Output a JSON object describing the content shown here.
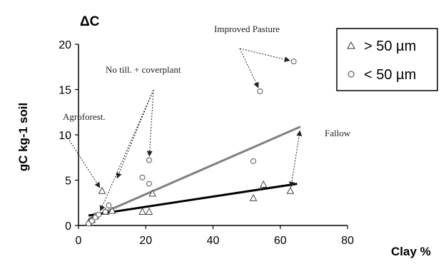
{
  "chart_data": {
    "type": "scatter",
    "title": "ΔC",
    "xlabel": "Clay %",
    "ylabel": "gC kg-1 soil",
    "xlim": [
      0,
      80
    ],
    "ylim": [
      0,
      20
    ],
    "x_ticks": [
      0,
      20,
      40,
      60,
      80
    ],
    "y_ticks": [
      0,
      5,
      10,
      15,
      20
    ],
    "x_tick_labels": [
      "0",
      "20",
      "40",
      "60",
      "80"
    ],
    "y_tick_labels": [
      "0",
      "5",
      "10",
      "15",
      "20"
    ],
    "grid": false,
    "legend_position": "top-right",
    "series": [
      {
        "name": "> 50 µm",
        "marker": "triangle",
        "x": [
          3,
          4,
          5,
          7,
          8,
          10,
          19,
          21,
          22,
          52,
          55,
          63
        ],
        "y": [
          0.3,
          0.6,
          1.0,
          3.8,
          1.5,
          1.6,
          1.5,
          1.5,
          3.5,
          3.0,
          4.5,
          3.8
        ]
      },
      {
        "name": "< 50 µm",
        "marker": "circle",
        "x": [
          3,
          4,
          5,
          6,
          8,
          9,
          19,
          21,
          21,
          52,
          54,
          64
        ],
        "y": [
          0.2,
          0.5,
          0.9,
          1.2,
          1.5,
          2.2,
          5.3,
          4.6,
          7.2,
          7.1,
          14.8,
          18.1
        ]
      }
    ],
    "trend_lines": [
      {
        "series": "< 50 µm",
        "x": [
          3,
          66
        ],
        "y": [
          0.7,
          10.9
        ],
        "color": "#808080"
      },
      {
        "series": "> 50 µm",
        "x": [
          3,
          65
        ],
        "y": [
          1.1,
          4.6
        ],
        "color": "#000000"
      }
    ],
    "annotations": [
      {
        "text": "Improved Pasture",
        "points_to": [
          [
            54,
            14.8
          ],
          [
            64,
            18.1
          ]
        ]
      },
      {
        "text": "No till. + coverplant",
        "points_to": [
          [
            6,
            1.2
          ],
          [
            21,
            7.2
          ],
          [
            11,
            4.8
          ]
        ]
      },
      {
        "text": "Agroforest.",
        "points_to": [
          [
            7,
            3.8
          ]
        ]
      },
      {
        "text": "Fallow",
        "points_to": [
          [
            63,
            3.8
          ],
          [
            66,
            10.9
          ]
        ]
      }
    ]
  }
}
